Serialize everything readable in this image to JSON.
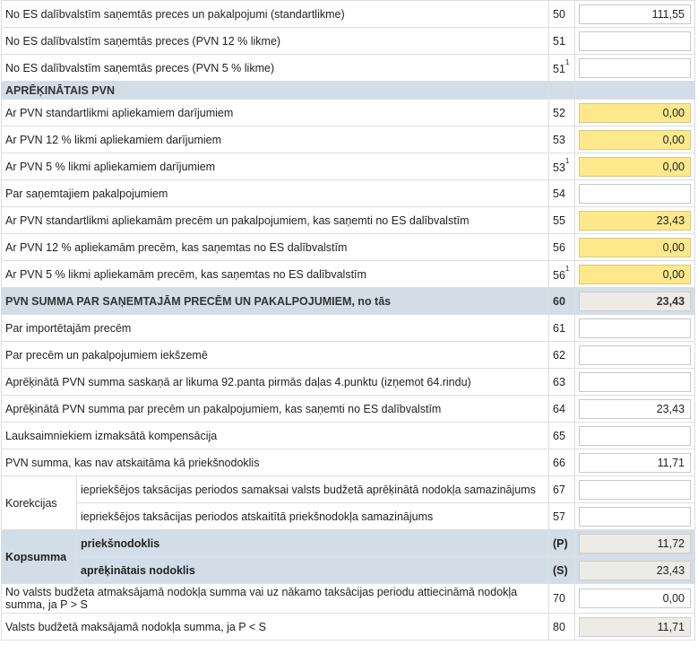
{
  "rows_top": [
    {
      "label": "No ES dalībvalstīm saņemtās preces un pakalpojumi (standartlikme)",
      "num": "50",
      "sup": "",
      "value": "111,55",
      "style": ""
    },
    {
      "label": "No ES dalībvalstīm saņemtās preces (PVN 12 % likme)",
      "num": "51",
      "sup": "",
      "value": "",
      "style": ""
    },
    {
      "label": "No ES dalībvalstīm saņemtās preces (PVN 5 % likme)",
      "num": "51",
      "sup": "1",
      "value": "",
      "style": ""
    }
  ],
  "section_calc": {
    "title": "APRĒĶINĀTAIS PVN"
  },
  "rows_calc": [
    {
      "label": "Ar PVN standartlikmi apliekamiem darījumiem",
      "num": "52",
      "sup": "",
      "value": "0,00",
      "style": "y"
    },
    {
      "label": "Ar PVN 12 % likmi apliekamiem darījumiem",
      "num": "53",
      "sup": "",
      "value": "0,00",
      "style": "y"
    },
    {
      "label": "Ar PVN 5 % likmi apliekamiem darījumiem",
      "num": "53",
      "sup": "1",
      "value": "0,00",
      "style": "y"
    },
    {
      "label": "Par saņemtajiem pakalpojumiem",
      "num": "54",
      "sup": "",
      "value": "",
      "style": ""
    },
    {
      "label": "Ar PVN standartlikmi apliekamām precēm un pakalpojumiem, kas saņemti no ES dalībvalstīm",
      "num": "55",
      "sup": "",
      "value": "23,43",
      "style": "y"
    },
    {
      "label": "Ar PVN 12 % apliekamām precēm, kas saņemtas no ES dalībvalstīm",
      "num": "56",
      "sup": "",
      "value": "0,00",
      "style": "y"
    },
    {
      "label": "Ar PVN 5 % likmi apliekamām precēm, kas saņemtas no ES dalībvalstīm",
      "num": "56",
      "sup": "1",
      "value": "0,00",
      "style": "y"
    }
  ],
  "section_received": {
    "title": "PVN SUMMA PAR SAŅEMTAJĀM PRECĒM UN PAKALPOJUMIEM, no tās",
    "num": "60",
    "value": "23,43"
  },
  "rows_received": [
    {
      "label": "Par importētajām precēm",
      "num": "61",
      "sup": "",
      "value": "",
      "style": ""
    },
    {
      "label": "Par precēm un pakalpojumiem iekšzemē",
      "num": "62",
      "sup": "",
      "value": "",
      "style": ""
    },
    {
      "label": "Aprēķinātā PVN summa saskaņā ar likuma 92.panta pirmās daļas 4.punktu (izņemot 64.rindu)",
      "num": "63",
      "sup": "",
      "value": "",
      "style": ""
    },
    {
      "label": "Aprēķinātā PVN summa par precēm un pakalpojumiem, kas saņemti no ES dalībvalstīm",
      "num": "64",
      "sup": "",
      "value": "23,43",
      "style": ""
    },
    {
      "label": "Lauksaimniekiem izmaksātā kompensācija",
      "num": "65",
      "sup": "",
      "value": "",
      "style": ""
    },
    {
      "label": "PVN summa, kas nav atskaitāma kā priekšnodoklis",
      "num": "66",
      "sup": "",
      "value": "11,71",
      "style": ""
    }
  ],
  "corrections": {
    "group_label": "Korekcijas",
    "rows": [
      {
        "label": "iepriekšējos taksācijas periodos samaksai valsts budžetā aprēķinātā nodokļa samazinājums",
        "num": "67",
        "value": ""
      },
      {
        "label": "iepriekšējos taksācijas periodos atskaitītā priekšnodokļa samazinājums",
        "num": "57",
        "value": ""
      }
    ]
  },
  "totals": {
    "group_label": "Kopsumma",
    "rows": [
      {
        "label": "priekšnodoklis",
        "num": "(P)",
        "value": "11,72"
      },
      {
        "label": "aprēķinātais nodoklis",
        "num": "(S)",
        "value": "23,43"
      }
    ]
  },
  "rows_final": [
    {
      "label": "No valsts budžeta atmaksājamā nodokļa summa vai uz nākamo taksācijas periodu attiecināmā nodokļa summa, ja P > S",
      "num": "70",
      "value": "0,00",
      "style": ""
    },
    {
      "label": "Valsts budžetā maksājamā nodokļa summa, ja P < S",
      "num": "80",
      "value": "11,71",
      "style": "g"
    }
  ]
}
